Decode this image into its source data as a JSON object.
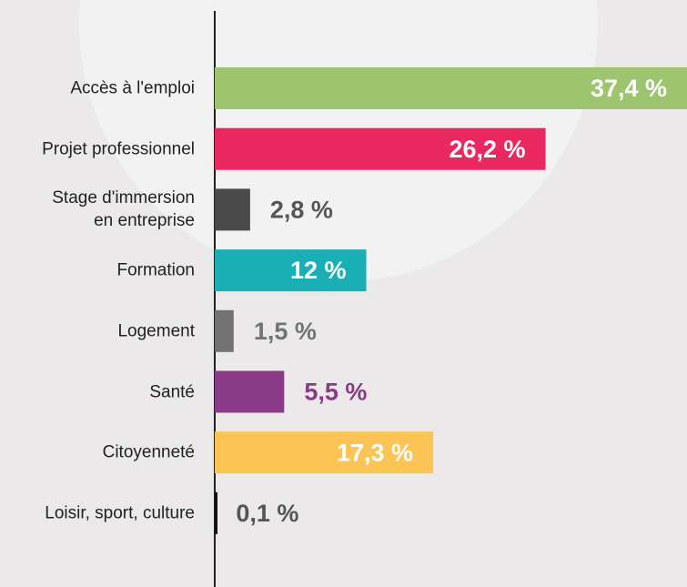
{
  "chart_data": {
    "type": "bar",
    "orientation": "horizontal",
    "categories": [
      "Accès à l'emploi",
      "Projet professionnel",
      "Stage d'immersion\nen entreprise",
      "Formation",
      "Logement",
      "Santé",
      "Citoyenneté",
      "Loisir, sport, culture"
    ],
    "values": [
      37.4,
      26.2,
      2.8,
      12,
      1.5,
      5.5,
      17.3,
      0.1
    ],
    "value_labels": [
      "37,4 %",
      "26,2 %",
      "2,8 %",
      "12 %",
      "1,5 %",
      "5,5 %",
      "17,3 %",
      "0,1 %"
    ],
    "colors": [
      "#9dc46f",
      "#e8285f",
      "#4a4a4a",
      "#1aafb5",
      "#737373",
      "#8b3a87",
      "#fcc455",
      "#111111"
    ],
    "xlim": [
      0,
      37.4
    ]
  }
}
